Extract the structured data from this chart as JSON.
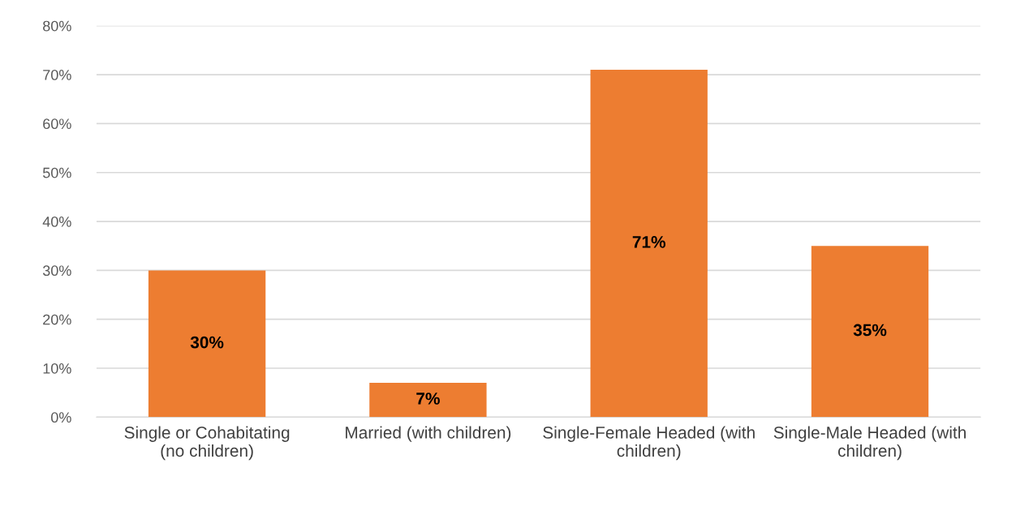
{
  "chart_data": {
    "type": "bar",
    "categories": [
      "Single or Cohabitating\n(no children)",
      "Married (with children)",
      "Single-Female Headed (with\nchildren)",
      "Single-Male Headed (with\nchildren)"
    ],
    "values": [
      30,
      7,
      71,
      35
    ],
    "value_labels": [
      "30%",
      "7%",
      "71%",
      "35%"
    ],
    "color": "#ed7d31",
    "ylim": [
      0,
      80
    ],
    "yticks": [
      {
        "value": 0,
        "label": "0%"
      },
      {
        "value": 10,
        "label": "10%"
      },
      {
        "value": 20,
        "label": "20%"
      },
      {
        "value": 30,
        "label": "30%"
      },
      {
        "value": 40,
        "label": "40%"
      },
      {
        "value": 50,
        "label": "50%"
      },
      {
        "value": 60,
        "label": "60%"
      },
      {
        "value": 70,
        "label": "70%"
      },
      {
        "value": 80,
        "label": "80%"
      }
    ],
    "grid": "y"
  }
}
